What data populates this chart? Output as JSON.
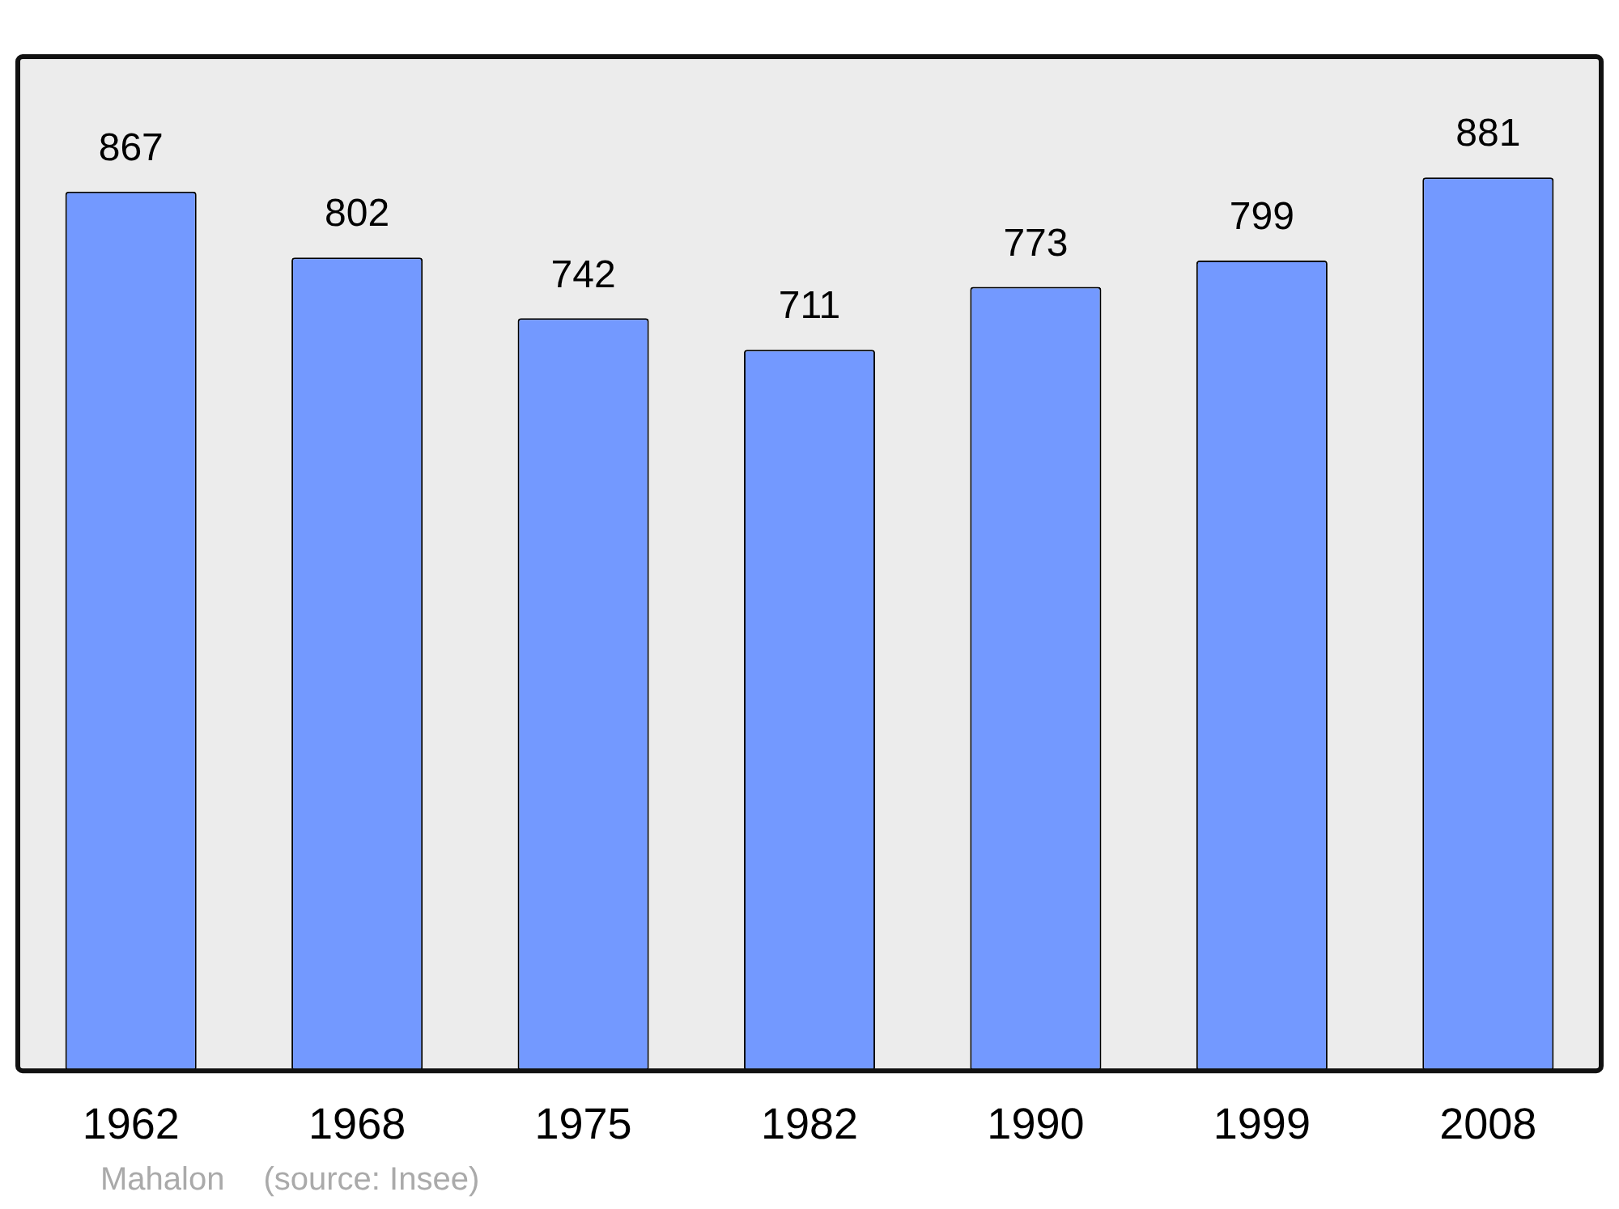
{
  "chart_data": {
    "type": "bar",
    "categories": [
      "1962",
      "1968",
      "1975",
      "1982",
      "1990",
      "1999",
      "2008"
    ],
    "values": [
      867,
      802,
      742,
      711,
      773,
      799,
      881
    ],
    "color": "#7399ff",
    "data_labels": true,
    "grid": false,
    "legend": false,
    "annotations": [
      "Mahalon",
      "(source: Insee)"
    ]
  }
}
